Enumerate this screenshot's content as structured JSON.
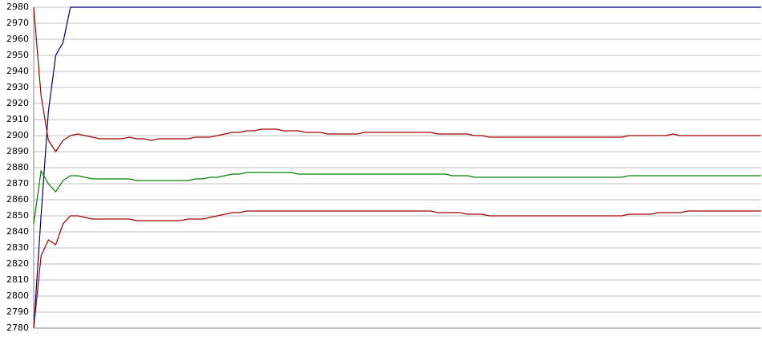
{
  "chart_data": {
    "type": "line",
    "categories": [
      null,
      null,
      null,
      null,
      null,
      null,
      null,
      null,
      null,
      null,
      null,
      null,
      null,
      null,
      null,
      null,
      null,
      null,
      null,
      null,
      null,
      null,
      null,
      null,
      null,
      null,
      null,
      null,
      null,
      null,
      null,
      null,
      null,
      null,
      null,
      null,
      null,
      null,
      null,
      null,
      null,
      null,
      null,
      null,
      null,
      null,
      null,
      null,
      null,
      null,
      null,
      null,
      null,
      null,
      null,
      null,
      null,
      null,
      null,
      null,
      null,
      null,
      null,
      null,
      null,
      null,
      null,
      null,
      null,
      null,
      null,
      null,
      null,
      null,
      null,
      null,
      null,
      null,
      null,
      null,
      null,
      null,
      null,
      null,
      null,
      null,
      null,
      null,
      null,
      null,
      null,
      null,
      null,
      null,
      null,
      null,
      null,
      null,
      null,
      null
    ],
    "series": [
      {
        "color": "#000080",
        "values": [
          2780,
          2850,
          2915,
          2950,
          2958,
          2980,
          2980,
          2980,
          2980,
          2980,
          2980,
          2980,
          2980,
          2980,
          2980,
          2980,
          2980,
          2980,
          2980,
          2980,
          2980,
          2980,
          2980,
          2980,
          2980,
          2980,
          2980,
          2980,
          2980,
          2980,
          2980,
          2980,
          2980,
          2980,
          2980,
          2980,
          2980,
          2980,
          2980,
          2980,
          2980,
          2980,
          2980,
          2980,
          2980,
          2980,
          2980,
          2980,
          2980,
          2980,
          2980,
          2980,
          2980,
          2980,
          2980,
          2980,
          2980,
          2980,
          2980,
          2980,
          2980,
          2980,
          2980,
          2980,
          2980,
          2980,
          2980,
          2980,
          2980,
          2980,
          2980,
          2980,
          2980,
          2980,
          2980,
          2980,
          2980,
          2980,
          2980,
          2980,
          2980,
          2980,
          2980,
          2980,
          2980,
          2980,
          2980,
          2980,
          2980,
          2980,
          2980,
          2980,
          2980,
          2980,
          2980,
          2980,
          2980,
          2980,
          2980,
          2980
        ]
      },
      {
        "color": "#a00000",
        "values": [
          2980,
          2925,
          2897,
          2890,
          2897,
          2900,
          2901,
          2900,
          2899,
          2898,
          2898,
          2898,
          2898,
          2899,
          2898,
          2898,
          2897,
          2898,
          2898,
          2898,
          2898,
          2898,
          2899,
          2899,
          2899,
          2900,
          2901,
          2902,
          2902,
          2903,
          2903,
          2904,
          2904,
          2904,
          2903,
          2903,
          2903,
          2902,
          2902,
          2902,
          2901,
          2901,
          2901,
          2901,
          2901,
          2902,
          2902,
          2902,
          2902,
          2902,
          2902,
          2902,
          2902,
          2902,
          2902,
          2901,
          2901,
          2901,
          2901,
          2901,
          2900,
          2900,
          2899,
          2899,
          2899,
          2899,
          2899,
          2899,
          2899,
          2899,
          2899,
          2899,
          2899,
          2899,
          2899,
          2899,
          2899,
          2899,
          2899,
          2899,
          2899,
          2900,
          2900,
          2900,
          2900,
          2900,
          2900,
          2901,
          2900,
          2900,
          2900,
          2900,
          2900,
          2900,
          2900,
          2900,
          2900,
          2900,
          2900,
          2900
        ]
      },
      {
        "color": "#008000",
        "values": [
          2845,
          2878,
          2870,
          2865,
          2872,
          2875,
          2875,
          2874,
          2873,
          2873,
          2873,
          2873,
          2873,
          2873,
          2872,
          2872,
          2872,
          2872,
          2872,
          2872,
          2872,
          2872,
          2873,
          2873,
          2874,
          2874,
          2875,
          2876,
          2876,
          2877,
          2877,
          2877,
          2877,
          2877,
          2877,
          2877,
          2876,
          2876,
          2876,
          2876,
          2876,
          2876,
          2876,
          2876,
          2876,
          2876,
          2876,
          2876,
          2876,
          2876,
          2876,
          2876,
          2876,
          2876,
          2876,
          2876,
          2876,
          2875,
          2875,
          2875,
          2874,
          2874,
          2874,
          2874,
          2874,
          2874,
          2874,
          2874,
          2874,
          2874,
          2874,
          2874,
          2874,
          2874,
          2874,
          2874,
          2874,
          2874,
          2874,
          2874,
          2874,
          2875,
          2875,
          2875,
          2875,
          2875,
          2875,
          2875,
          2875,
          2875,
          2875,
          2875,
          2875,
          2875,
          2875,
          2875,
          2875,
          2875,
          2875,
          2875
        ]
      },
      {
        "color": "#a00000",
        "values": [
          2780,
          2825,
          2835,
          2832,
          2845,
          2850,
          2850,
          2849,
          2848,
          2848,
          2848,
          2848,
          2848,
          2848,
          2847,
          2847,
          2847,
          2847,
          2847,
          2847,
          2847,
          2848,
          2848,
          2848,
          2849,
          2850,
          2851,
          2852,
          2852,
          2853,
          2853,
          2853,
          2853,
          2853,
          2853,
          2853,
          2853,
          2853,
          2853,
          2853,
          2853,
          2853,
          2853,
          2853,
          2853,
          2853,
          2853,
          2853,
          2853,
          2853,
          2853,
          2853,
          2853,
          2853,
          2853,
          2852,
          2852,
          2852,
          2852,
          2851,
          2851,
          2851,
          2850,
          2850,
          2850,
          2850,
          2850,
          2850,
          2850,
          2850,
          2850,
          2850,
          2850,
          2850,
          2850,
          2850,
          2850,
          2850,
          2850,
          2850,
          2850,
          2851,
          2851,
          2851,
          2851,
          2852,
          2852,
          2852,
          2852,
          2853,
          2853,
          2853,
          2853,
          2853,
          2853,
          2853,
          2853,
          2853,
          2853,
          2853
        ]
      }
    ],
    "ylim": [
      2780,
      2980
    ],
    "yticks": [
      2780,
      2790,
      2800,
      2810,
      2820,
      2830,
      2840,
      2850,
      2860,
      2870,
      2880,
      2890,
      2900,
      2910,
      2920,
      2930,
      2940,
      2950,
      2960,
      2970,
      2980
    ],
    "grid": true
  }
}
